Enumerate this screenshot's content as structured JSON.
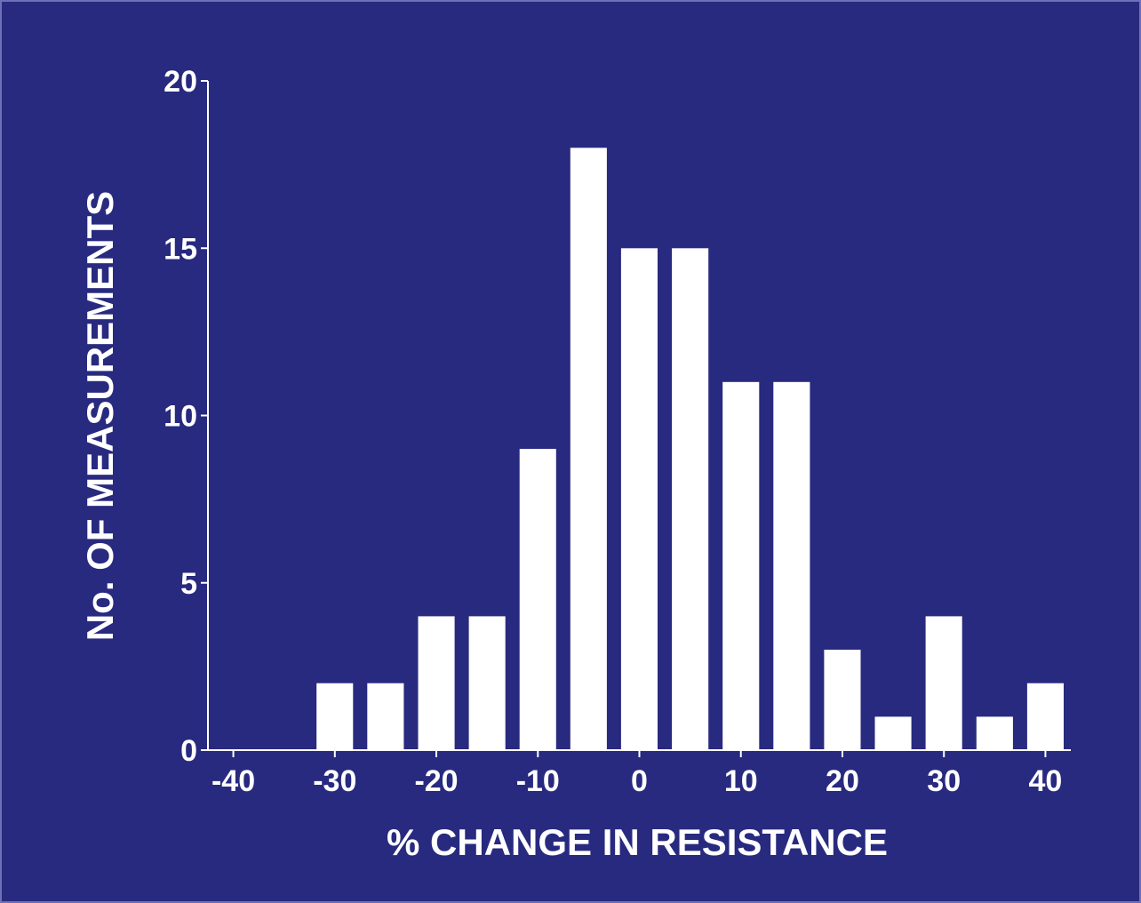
{
  "colors": {
    "background": "#282a7f",
    "bars": "#ffffff",
    "axis": "#ffffff",
    "text": "#ffffff"
  },
  "chart_data": {
    "type": "bar",
    "title": "",
    "xlabel": "% CHANGE IN RESISTANCE",
    "ylabel": "No. OF MEASUREMENTS",
    "bin_width": 5,
    "bin_centers": [
      -40,
      -35,
      -30,
      -25,
      -20,
      -15,
      -10,
      -5,
      0,
      5,
      10,
      15,
      20,
      25,
      30,
      35,
      40
    ],
    "values": [
      0,
      0,
      2,
      2,
      4,
      4,
      9,
      18,
      15,
      15,
      11,
      11,
      3,
      1,
      4,
      1,
      2
    ],
    "xlim": [
      -42.5,
      42.5
    ],
    "ylim": [
      0,
      20
    ],
    "x_ticks": [
      -40,
      -30,
      -20,
      -10,
      0,
      10,
      20,
      30,
      40
    ],
    "x_tick_labels": [
      "-40",
      "-30",
      "-20",
      "-10",
      "0",
      "10",
      "20",
      "30",
      "40"
    ],
    "y_ticks": [
      0,
      5,
      10,
      15,
      20
    ],
    "y_tick_labels": [
      "0",
      "5",
      "10",
      "15",
      "20"
    ],
    "grid": false,
    "legend": "none"
  }
}
